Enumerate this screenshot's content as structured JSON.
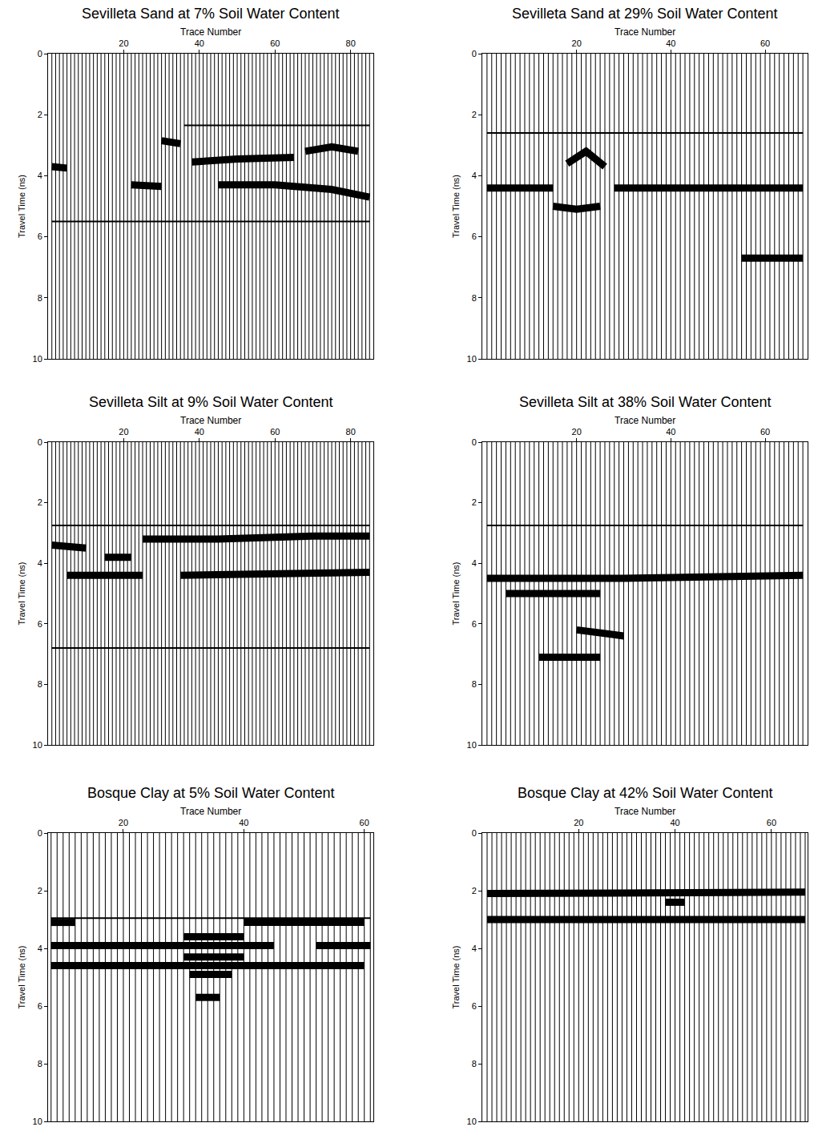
{
  "chart_data": [
    {
      "type": "radargram",
      "title": "Sevilleta Sand at 7% Soil Water Content",
      "xlabel": "Trace Number",
      "ylabel": "Travel Time (ns)",
      "traces": [
        1,
        85
      ],
      "xlim": [
        0,
        86
      ],
      "xticks": [
        20,
        40,
        60,
        80
      ],
      "ylim": [
        0,
        10
      ],
      "yticks": [
        0,
        2,
        4,
        6,
        8,
        10
      ],
      "color": "#000000",
      "series": [
        {
          "type": "line",
          "x": [
            36,
            85
          ],
          "values": [
            2.35,
            2.35
          ]
        },
        {
          "type": "band",
          "x": [
            1,
            5
          ],
          "values": [
            3.7,
            3.75
          ]
        },
        {
          "type": "band",
          "x": [
            22,
            30
          ],
          "values": [
            4.3,
            4.35
          ]
        },
        {
          "type": "band",
          "x": [
            30,
            35
          ],
          "values": [
            2.85,
            2.95
          ]
        },
        {
          "type": "band",
          "x": [
            38,
            50,
            65
          ],
          "values": [
            3.55,
            3.45,
            3.4
          ]
        },
        {
          "type": "band",
          "x": [
            68,
            75,
            82
          ],
          "values": [
            3.2,
            3.05,
            3.2
          ]
        },
        {
          "type": "band",
          "x": [
            45,
            60,
            75,
            85
          ],
          "values": [
            4.3,
            4.3,
            4.45,
            4.7
          ]
        },
        {
          "type": "line",
          "x": [
            1,
            85
          ],
          "values": [
            5.5,
            5.5
          ]
        }
      ]
    },
    {
      "type": "radargram",
      "title": "Sevilleta Sand at 29% Soil Water Content",
      "xlabel": "Trace Number",
      "ylabel": "Travel Time (ns)",
      "traces": [
        1,
        68
      ],
      "xlim": [
        0,
        69
      ],
      "xticks": [
        20,
        40,
        60
      ],
      "ylim": [
        0,
        10
      ],
      "yticks": [
        0,
        2,
        4,
        6,
        8,
        10
      ],
      "color": "#000000",
      "series": [
        {
          "type": "line",
          "x": [
            1,
            68
          ],
          "values": [
            2.6,
            2.6
          ]
        },
        {
          "type": "band",
          "x": [
            1,
            15
          ],
          "values": [
            4.4,
            4.4
          ]
        },
        {
          "type": "band",
          "x": [
            28,
            68
          ],
          "values": [
            4.4,
            4.4
          ]
        },
        {
          "type": "band",
          "x": [
            18,
            22,
            26
          ],
          "values": [
            3.6,
            3.2,
            3.7
          ]
        },
        {
          "type": "band",
          "x": [
            15,
            20,
            25
          ],
          "values": [
            5.0,
            5.1,
            5.0
          ]
        },
        {
          "type": "band",
          "x": [
            55,
            68
          ],
          "values": [
            6.7,
            6.7
          ]
        }
      ]
    },
    {
      "type": "radargram",
      "title": "Sevilleta Silt at 9% Soil Water Content",
      "xlabel": "Trace Number",
      "ylabel": "Travel Time (ns)",
      "traces": [
        1,
        85
      ],
      "xlim": [
        0,
        86
      ],
      "xticks": [
        20,
        40,
        60,
        80
      ],
      "ylim": [
        0,
        10
      ],
      "yticks": [
        0,
        2,
        4,
        6,
        8,
        10
      ],
      "color": "#000000",
      "series": [
        {
          "type": "line",
          "x": [
            1,
            85
          ],
          "values": [
            2.75,
            2.75
          ]
        },
        {
          "type": "band",
          "x": [
            1,
            10
          ],
          "values": [
            3.4,
            3.5
          ]
        },
        {
          "type": "band",
          "x": [
            15,
            22
          ],
          "values": [
            3.8,
            3.8
          ]
        },
        {
          "type": "band",
          "x": [
            25,
            45,
            70,
            85
          ],
          "values": [
            3.2,
            3.2,
            3.1,
            3.1
          ]
        },
        {
          "type": "band",
          "x": [
            5,
            25
          ],
          "values": [
            4.4,
            4.4
          ]
        },
        {
          "type": "band",
          "x": [
            35,
            60,
            85
          ],
          "values": [
            4.4,
            4.35,
            4.3
          ]
        },
        {
          "type": "line",
          "x": [
            1,
            85
          ],
          "values": [
            6.8,
            6.8
          ]
        }
      ]
    },
    {
      "type": "radargram",
      "title": "Sevilleta Silt at 38% Soil Water Content",
      "xlabel": "Trace Number",
      "ylabel": "Travel Time (ns)",
      "traces": [
        1,
        68
      ],
      "xlim": [
        0,
        69
      ],
      "xticks": [
        20,
        40,
        60
      ],
      "ylim": [
        0,
        10
      ],
      "yticks": [
        0,
        2,
        4,
        6,
        8,
        10
      ],
      "color": "#000000",
      "series": [
        {
          "type": "line",
          "x": [
            1,
            68
          ],
          "values": [
            2.75,
            2.75
          ]
        },
        {
          "type": "band",
          "x": [
            1,
            30,
            68
          ],
          "values": [
            4.5,
            4.5,
            4.4
          ]
        },
        {
          "type": "band",
          "x": [
            5,
            25
          ],
          "values": [
            5.0,
            5.0
          ]
        },
        {
          "type": "band",
          "x": [
            20,
            30
          ],
          "values": [
            6.2,
            6.4
          ]
        },
        {
          "type": "band",
          "x": [
            12,
            25
          ],
          "values": [
            7.1,
            7.1
          ]
        }
      ]
    },
    {
      "type": "radargram",
      "title": "Bosque Clay at 5% Soil Water Content",
      "xlabel": "Trace Number",
      "ylabel": "Travel Time (ns)",
      "traces": [
        8,
        61
      ],
      "xlim": [
        7.5,
        61.5
      ],
      "xticks": [
        20,
        40,
        60
      ],
      "ylim": [
        0,
        10
      ],
      "yticks": [
        0,
        2,
        4,
        6,
        8,
        10
      ],
      "color": "#000000",
      "series": [
        {
          "type": "line",
          "x": [
            8,
            61
          ],
          "values": [
            2.95,
            2.95
          ]
        },
        {
          "type": "band",
          "x": [
            8,
            12
          ],
          "values": [
            3.1,
            3.1
          ]
        },
        {
          "type": "band",
          "x": [
            40,
            60
          ],
          "values": [
            3.1,
            3.1
          ]
        },
        {
          "type": "band",
          "x": [
            8,
            45
          ],
          "values": [
            3.9,
            3.9
          ]
        },
        {
          "type": "band",
          "x": [
            52,
            61
          ],
          "values": [
            3.9,
            3.9
          ]
        },
        {
          "type": "band",
          "x": [
            8,
            60
          ],
          "values": [
            4.6,
            4.6
          ]
        },
        {
          "type": "band",
          "x": [
            30,
            40
          ],
          "values": [
            3.6,
            3.6
          ]
        },
        {
          "type": "band",
          "x": [
            30,
            40
          ],
          "values": [
            4.3,
            4.3
          ]
        },
        {
          "type": "band",
          "x": [
            31,
            38
          ],
          "values": [
            4.9,
            4.9
          ]
        },
        {
          "type": "band",
          "x": [
            32,
            36
          ],
          "values": [
            5.7,
            5.7
          ]
        }
      ]
    },
    {
      "type": "radargram",
      "title": "Bosque Clay at 42% Soil Water Content",
      "xlabel": "Trace Number",
      "ylabel": "Travel Time (ns)",
      "traces": [
        1,
        67
      ],
      "xlim": [
        0,
        67.5
      ],
      "xticks": [
        20,
        40,
        60
      ],
      "ylim": [
        0,
        10
      ],
      "yticks": [
        0,
        2,
        4,
        6,
        8,
        10
      ],
      "color": "#000000",
      "series": [
        {
          "type": "band",
          "x": [
            1,
            67
          ],
          "values": [
            2.1,
            2.05
          ]
        },
        {
          "type": "band",
          "x": [
            38,
            42
          ],
          "values": [
            2.4,
            2.4
          ]
        },
        {
          "type": "band",
          "x": [
            1,
            67
          ],
          "values": [
            3.0,
            3.0
          ]
        }
      ]
    }
  ]
}
